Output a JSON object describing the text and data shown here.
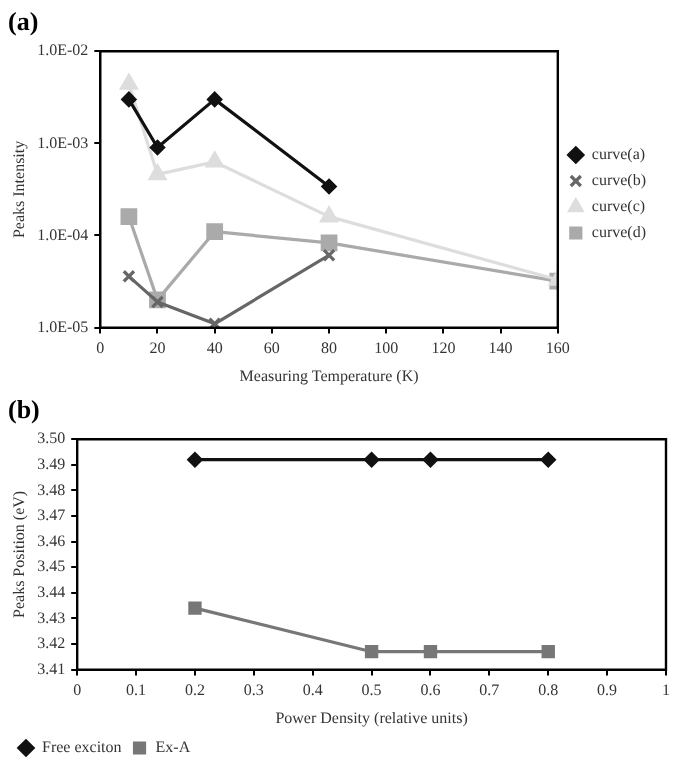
{
  "chart_data": [
    {
      "type": "line",
      "title": "(a)",
      "xlabel": "Measuring Temperature (K)",
      "ylabel": "Peaks Intensity",
      "log": "y",
      "grid": false,
      "legend": "right",
      "x": [
        10,
        20,
        40,
        80,
        160
      ],
      "xlim": [
        0,
        160
      ],
      "xticks": [
        0,
        20,
        40,
        60,
        80,
        100,
        120,
        140,
        160
      ],
      "ylim": [
        1e-05,
        0.01
      ],
      "yticks": [
        {
          "value": 1e-05,
          "label": "1.0E-05"
        },
        {
          "value": 0.0001,
          "label": "1.0E-04"
        },
        {
          "value": 0.001,
          "label": "1.0E-03"
        },
        {
          "value": 0.01,
          "label": "1.0E-02"
        }
      ],
      "series": [
        {
          "name": "curve(a)",
          "color": "#111111",
          "marker": "diamond",
          "values": [
            0.003,
            0.0009,
            0.003,
            0.00034,
            null
          ]
        },
        {
          "name": "curve(b)",
          "color": "#666666",
          "marker": "cross",
          "values": [
            3.6e-05,
            1.9e-05,
            1.1e-05,
            6.1e-05,
            null
          ]
        },
        {
          "name": "curve(c)",
          "color": "#dddddd",
          "marker": "triangle",
          "values": [
            0.0044,
            0.00046,
            0.00063,
            0.00016,
            3.3e-05
          ]
        },
        {
          "name": "curve(d)",
          "color": "#aaaaaa",
          "marker": "square",
          "values": [
            0.00016,
            2e-05,
            0.00011,
            8.3e-05,
            3.2e-05
          ]
        }
      ]
    },
    {
      "type": "line",
      "title": "(b)",
      "xlabel": "Power Density (relative units)",
      "ylabel": "Peaks Position (eV)",
      "grid": false,
      "legend": "bottom left",
      "x": [
        0.2,
        0.5,
        0.6,
        0.8
      ],
      "xlim": [
        0,
        1
      ],
      "xticks": [
        0,
        0.1,
        0.2,
        0.3,
        0.4,
        0.5,
        0.6,
        0.7,
        0.8,
        0.9,
        1
      ],
      "ylim": [
        3.41,
        3.5
      ],
      "yticks": [
        3.41,
        3.42,
        3.43,
        3.44,
        3.45,
        3.46,
        3.47,
        3.48,
        3.49,
        {
          "value": 3.5,
          "label": "3.50"
        }
      ],
      "series": [
        {
          "name": "Free exciton",
          "color": "#111111",
          "marker": "diamond",
          "values": [
            3.492,
            3.492,
            3.492,
            3.492
          ]
        },
        {
          "name": "Ex-A",
          "color": "#777777",
          "marker": "square",
          "values": [
            3.434,
            3.417,
            3.417,
            3.417
          ]
        }
      ]
    }
  ]
}
